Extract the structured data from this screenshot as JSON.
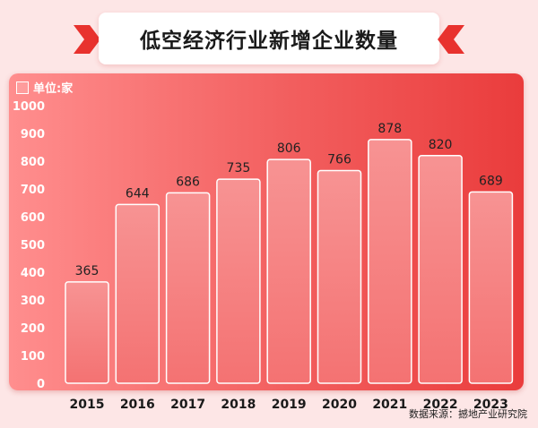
{
  "title": "低空经济行业新增企业数量",
  "unit_label": "单位:家",
  "source": "数据来源：撼地产业研究院",
  "colors": {
    "panel": "#f25e5e",
    "bar_fill": "#f78a8a",
    "bar_stroke": "#ffffff",
    "chevron": "#e8322e",
    "background": "#fde6e6"
  },
  "chart_data": {
    "type": "bar",
    "categories": [
      "2015",
      "2016",
      "2017",
      "2018",
      "2019",
      "2020",
      "2021",
      "2022",
      "2023"
    ],
    "values": [
      365,
      644,
      686,
      735,
      806,
      766,
      878,
      820,
      689
    ],
    "ylim": [
      0,
      1000
    ],
    "yticks": [
      0,
      100,
      200,
      300,
      400,
      500,
      600,
      700,
      800,
      900,
      1000
    ],
    "title": "低空经济行业新增企业数量",
    "ylabel": "单位:家",
    "grid": false,
    "data_labels": true
  }
}
